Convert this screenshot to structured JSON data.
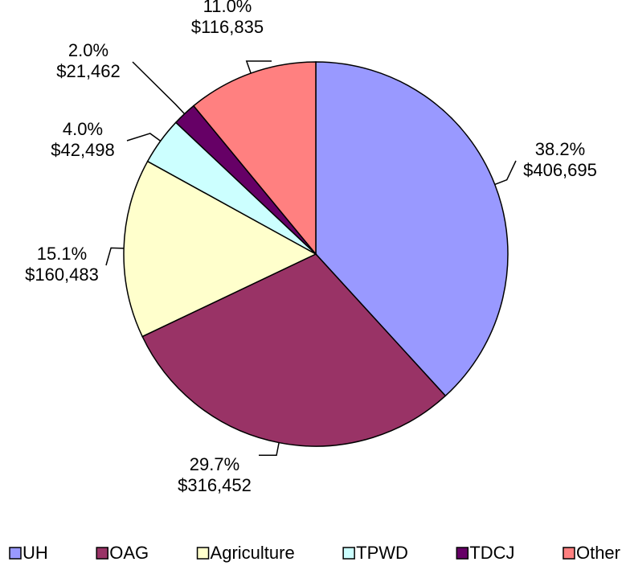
{
  "chart_data": {
    "type": "pie",
    "categories": [
      "UH",
      "OAG",
      "Agriculture",
      "TPWD",
      "TDCJ",
      "Other"
    ],
    "values": [
      406695,
      316452,
      160483,
      42498,
      21462,
      116835
    ],
    "value_labels": [
      "$406,695",
      "$316,452",
      "$160,483",
      "$42,498",
      "$21,462",
      "$116,835"
    ],
    "percents": [
      38.2,
      29.7,
      15.1,
      4.0,
      2.0,
      11.0
    ],
    "percent_labels": [
      "38.2%",
      "29.7%",
      "15.1%",
      "4.0%",
      "2.0%",
      "11.0%"
    ],
    "colors": [
      "#9999ff",
      "#993366",
      "#ffffcc",
      "#ccffff",
      "#660066",
      "#ff8080"
    ],
    "legend": "bottom"
  }
}
